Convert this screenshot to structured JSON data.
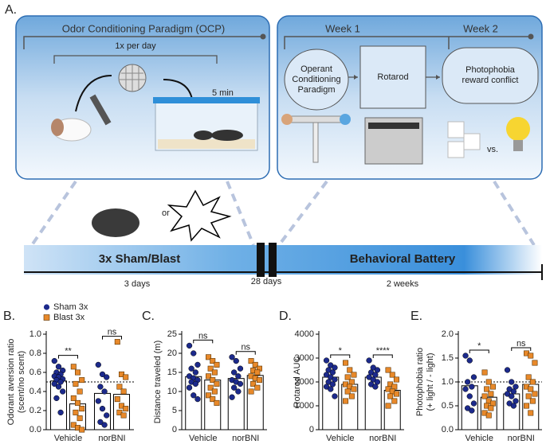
{
  "panel_a": {
    "label": "A.",
    "ocp_title": "Odor Conditioning Paradigm (OCP)",
    "frequency": "1x per day",
    "duration": "5 min",
    "week1": "Week 1",
    "week2": "Week 2",
    "operant": [
      "Operant",
      "Conditioning",
      "Paradigm"
    ],
    "rotarod": "Rotarod",
    "photophobia": [
      "Photophobia",
      "reward conflict"
    ],
    "or": "or",
    "vs": "vs.",
    "injury": "3x Sham/Blast",
    "battery": "Behavioral Battery",
    "injury_days": "3 days",
    "gap_days": "28 days",
    "battery_weeks": "2 weeks"
  },
  "chart_data": [
    {
      "type": "bar",
      "panel": "B.",
      "ylabel": [
        "Odorant aversion ratio",
        "(scent/no scent)"
      ],
      "categories": [
        "Vehicle",
        "norBNI"
      ],
      "legend": true,
      "series": [
        {
          "name": "Sham 3x",
          "color": "#1c2a8c",
          "marker": "circle",
          "values": [
            0.51,
            0.38
          ],
          "points": [
            [
              0.72,
              0.66,
              0.62,
              0.6,
              0.58,
              0.56,
              0.55,
              0.53,
              0.52,
              0.5,
              0.48,
              0.45,
              0.4,
              0.33,
              0.18
            ],
            [
              0.68,
              0.58,
              0.55,
              0.45,
              0.4,
              0.3,
              0.22,
              0.15,
              0.08,
              0.05
            ]
          ]
        },
        {
          "name": "Blast 3x",
          "color": "#e8892a",
          "marker": "square",
          "values": [
            0.27,
            0.37
          ],
          "points": [
            [
              0.66,
              0.6,
              0.52,
              0.48,
              0.4,
              0.33,
              0.28,
              0.22,
              0.18,
              0.12,
              0.05,
              0.02,
              0.0
            ],
            [
              0.92,
              0.58,
              0.55,
              0.45,
              0.4,
              0.32,
              0.25,
              0.22,
              0.18,
              0.15
            ]
          ]
        }
      ],
      "significance": [
        "**",
        "ns"
      ],
      "refline": 0.5,
      "ylim": [
        0,
        1
      ],
      "yticks": [
        {
          "value": 0,
          "label": "0.0"
        },
        0.2,
        0.4,
        0.6,
        0.8,
        {
          "value": 1,
          "label": "1.0"
        }
      ]
    },
    {
      "type": "bar",
      "panel": "C.",
      "ylabel": [
        "Distance traveled (m)"
      ],
      "categories": [
        "Vehicle",
        "norBNI"
      ],
      "legend": false,
      "series": [
        {
          "name": "Sham 3x",
          "color": "#1c2a8c",
          "marker": "circle",
          "values": [
            13.9,
            13.4
          ],
          "points": [
            [
              22,
              20,
              17,
              16,
              15,
              14,
              13.5,
              13,
              12.5,
              12,
              11,
              9,
              8
            ],
            [
              19,
              18,
              16,
              15,
              14,
              13,
              12.5,
              12,
              11,
              10,
              8.5
            ]
          ]
        },
        {
          "name": "Blast 3x",
          "color": "#e8892a",
          "marker": "square",
          "values": [
            13,
            14.2
          ],
          "points": [
            [
              19,
              18,
              17,
              16,
              15,
              14,
              13,
              12,
              11,
              10,
              9,
              8,
              7
            ],
            [
              18,
              17,
              16,
              15.5,
              15,
              14,
              13.5,
              13,
              12,
              11,
              10
            ]
          ]
        }
      ],
      "significance": [
        "ns",
        "ns"
      ],
      "ylim": [
        0,
        25
      ],
      "yticks": [
        0,
        5,
        10,
        15,
        20,
        25
      ]
    },
    {
      "type": "bar",
      "panel": "D.",
      "ylabel": [
        "Rotarod AUC"
      ],
      "categories": [
        "Vehicle",
        "norBNI"
      ],
      "legend": false,
      "series": [
        {
          "name": "Sham 3x",
          "color": "#1c2a8c",
          "marker": "circle",
          "values": [
            2200,
            2200
          ],
          "points": [
            [
              2900,
              2700,
              2600,
              2500,
              2400,
              2300,
              2200,
              2100,
              2000,
              1900,
              1800,
              1700,
              1400
            ],
            [
              2900,
              2600,
              2500,
              2400,
              2300,
              2200,
              2100,
              2000,
              1900,
              1800
            ]
          ]
        },
        {
          "name": "Blast 3x",
          "color": "#e8892a",
          "marker": "square",
          "values": [
            1900,
            1650
          ],
          "points": [
            [
              2800,
              2500,
              2300,
              2200,
              2000,
              1900,
              1800,
              1700,
              1600,
              1400,
              1200
            ],
            [
              2500,
              2300,
              2100,
              1900,
              1800,
              1700,
              1600,
              1500,
              1400,
              1200,
              1000
            ]
          ]
        }
      ],
      "significance": [
        "*",
        "****"
      ],
      "ylim": [
        0,
        4000
      ],
      "yticks": [
        0,
        1000,
        2000,
        3000,
        4000
      ]
    },
    {
      "type": "bar",
      "panel": "E.",
      "ylabel": [
        "Photophobia ratio",
        "(+ light / - light)"
      ],
      "categories": [
        "Vehicle",
        "norBNI"
      ],
      "legend": false,
      "series": [
        {
          "name": "Sham 3x",
          "color": "#1c2a8c",
          "marker": "circle",
          "values": [
            0.92,
            0.75
          ],
          "points": [
            [
              1.55,
              1.45,
              1.1,
              1.0,
              0.9,
              0.85,
              0.7,
              0.55,
              0.45,
              0.4
            ],
            [
              1.25,
              1.0,
              0.9,
              0.85,
              0.8,
              0.75,
              0.7,
              0.6,
              0.55,
              0.5
            ]
          ]
        },
        {
          "name": "Blast 3x",
          "color": "#e8892a",
          "marker": "square",
          "values": [
            0.68,
            0.95
          ],
          "points": [
            [
              1.2,
              1.0,
              0.9,
              0.85,
              0.75,
              0.7,
              0.6,
              0.55,
              0.5,
              0.45,
              0.35,
              0.3
            ],
            [
              1.6,
              1.55,
              1.4,
              1.1,
              1.0,
              0.9,
              0.85,
              0.75,
              0.7,
              0.6,
              0.5,
              0.35
            ]
          ]
        }
      ],
      "significance": [
        "*",
        "ns"
      ],
      "refline": 1.0,
      "ylim": [
        0,
        2
      ],
      "yticks": [
        {
          "value": 0,
          "label": "0.0"
        },
        0.5,
        {
          "value": 1,
          "label": "1.0"
        },
        1.5,
        {
          "value": 2,
          "label": "2.0"
        }
      ]
    }
  ]
}
